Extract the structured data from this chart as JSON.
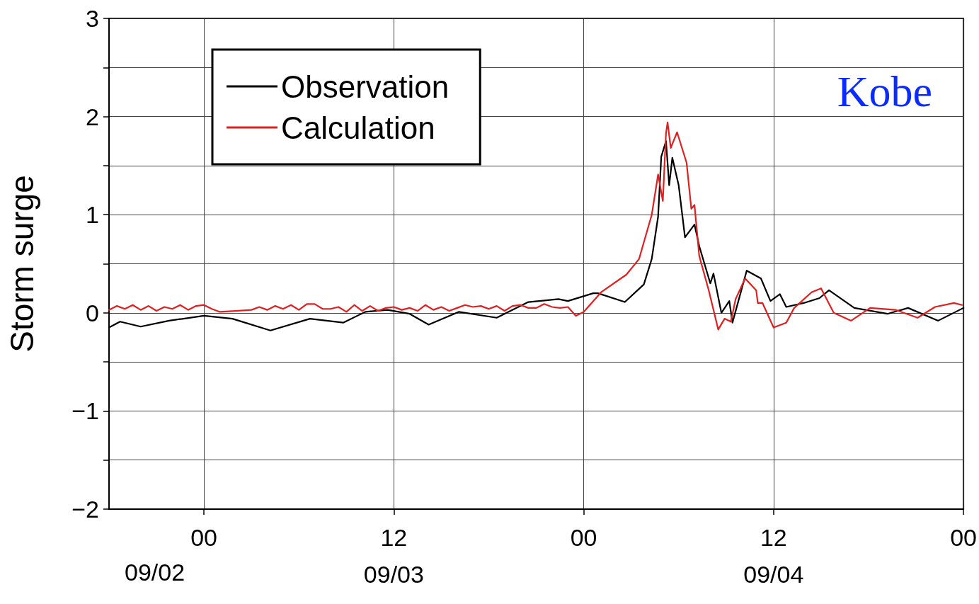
{
  "chart_data": {
    "type": "line",
    "ylabel": "Storm surge",
    "annotations": [
      "Kobe",
      "09/02"
    ],
    "xlim": [
      "--09-02T18:00",
      "--09-05T00:00"
    ],
    "xticks": [
      {
        "value": "--09-03T00:00",
        "label": "00"
      },
      {
        "value": "--09-03T12:00",
        "label": "12\n09/03"
      },
      {
        "value": "--09-04T00:00",
        "label": "00"
      },
      {
        "value": "--09-04T12:00",
        "label": "12\n09/04"
      },
      {
        "value": "--09-05T00:00",
        "label": "00"
      }
    ],
    "ylim": [
      -2,
      3
    ],
    "yticks": [
      -2,
      {
        "value": -1.5,
        "label": null
      },
      -1,
      {
        "value": -0.5,
        "label": null
      },
      0,
      {
        "value": 0.5,
        "label": null
      },
      1,
      {
        "value": 1.5,
        "label": null
      },
      2,
      {
        "value": 2.5,
        "label": null
      },
      3
    ],
    "grid": true,
    "legend": "top left",
    "marker": "none",
    "line_style": "solid",
    "series": [
      {
        "name": "Observation",
        "color": "#000000",
        "x": [
          "--09-02T18:00",
          "--09-02T18:42",
          "--09-02T20:00",
          "--09-02T21:48",
          "--09-03T00:00",
          "--09-03T01:48",
          "--09-03T04:12",
          "--09-03T06:42",
          "--09-03T08:48",
          "--09-03T10:12",
          "--09-03T11:36",
          "--09-03T13:00",
          "--09-03T14:12",
          "--09-03T16:06",
          "--09-03T18:30",
          "--09-03T20:30",
          "--09-03T22:24",
          "--09-03T23:00",
          "--09-04T00:36",
          "--09-04T00:54",
          "--09-04T02:36",
          "--09-04T03:48",
          "--09-04T04:18",
          "--09-04T04:42",
          "--09-04T04:54",
          "--09-04T05:12",
          "--09-04T05:24",
          "--09-04T05:36",
          "--09-04T06:00",
          "--09-04T06:24",
          "--09-04T07:00",
          "--09-04T07:18",
          "--09-04T08:00",
          "--09-04T08:12",
          "--09-04T08:42",
          "--09-04T09:12",
          "--09-04T09:24",
          "--09-04T10:18",
          "--09-04T11:12",
          "--09-04T11:48",
          "--09-04T12:24",
          "--09-04T12:48",
          "--09-04T13:54",
          "--09-04T14:54",
          "--09-04T15:30",
          "--09-04T17:06",
          "--09-04T19:12",
          "--09-04T20:30",
          "--09-04T22:24",
          "--09-05T00:00"
        ],
        "values": [
          -0.15,
          -0.09,
          -0.14,
          -0.08,
          -0.03,
          -0.06,
          -0.18,
          -0.06,
          -0.1,
          0.01,
          0.03,
          -0.01,
          -0.12,
          0.01,
          -0.05,
          0.11,
          0.14,
          0.12,
          0.2,
          0.2,
          0.11,
          0.29,
          0.55,
          0.98,
          1.59,
          1.75,
          1.3,
          1.58,
          1.3,
          0.77,
          0.9,
          0.68,
          0.3,
          0.4,
          0.0,
          0.12,
          -0.1,
          0.43,
          0.35,
          0.12,
          0.19,
          0.06,
          0.1,
          0.15,
          0.23,
          0.05,
          -0.01,
          0.05,
          -0.08,
          0.05
        ]
      },
      {
        "name": "Calculation",
        "color": "#e02020",
        "x": [
          "--09-02T18:00",
          "--09-02T18:30",
          "--09-02T19:00",
          "--09-02T19:30",
          "--09-02T20:00",
          "--09-02T20:30",
          "--09-02T21:00",
          "--09-02T21:30",
          "--09-02T22:00",
          "--09-02T22:30",
          "--09-02T23:00",
          "--09-02T23:30",
          "--09-03T00:00",
          "--09-03T00:30",
          "--09-03T01:00",
          "--09-03T02:00",
          "--09-03T03:00",
          "--09-03T03:30",
          "--09-03T04:00",
          "--09-03T04:30",
          "--09-03T05:00",
          "--09-03T05:30",
          "--09-03T06:00",
          "--09-03T06:30",
          "--09-03T07:00",
          "--09-03T07:30",
          "--09-03T08:00",
          "--09-03T08:30",
          "--09-03T09:00",
          "--09-03T09:30",
          "--09-03T10:00",
          "--09-03T10:30",
          "--09-03T11:00",
          "--09-03T11:30",
          "--09-03T12:00",
          "--09-03T12:30",
          "--09-03T13:00",
          "--09-03T13:30",
          "--09-03T14:00",
          "--09-03T14:30",
          "--09-03T15:00",
          "--09-03T15:30",
          "--09-03T16:00",
          "--09-03T16:30",
          "--09-03T17:00",
          "--09-03T17:30",
          "--09-03T18:00",
          "--09-03T18:30",
          "--09-03T19:00",
          "--09-03T19:30",
          "--09-03T20:00",
          "--09-03T20:30",
          "--09-03T21:00",
          "--09-03T21:30",
          "--09-03T22:00",
          "--09-03T22:30",
          "--09-03T23:00",
          "--09-03T23:30",
          "--09-04T00:00",
          "--09-04T01:06",
          "--09-04T02:42",
          "--09-04T03:30",
          "--09-04T04:18",
          "--09-04T04:42",
          "--09-04T05:00",
          "--09-04T05:12",
          "--09-04T05:18",
          "--09-04T05:30",
          "--09-04T05:54",
          "--09-04T06:30",
          "--09-04T06:48",
          "--09-04T07:00",
          "--09-04T07:18",
          "--09-04T07:54",
          "--09-04T08:30",
          "--09-04T08:54",
          "--09-04T09:18",
          "--09-04T09:36",
          "--09-04T10:12",
          "--09-04T10:54",
          "--09-04T11:00",
          "--09-04T11:18",
          "--09-04T12:00",
          "--09-04T12:48",
          "--09-04T13:18",
          "--09-04T14:24",
          "--09-04T15:00",
          "--09-04T15:48",
          "--09-04T16:54",
          "--09-04T18:06",
          "--09-04T19:42",
          "--09-04T21:06",
          "--09-04T22:12",
          "--09-04T23:24",
          "--09-04T23:54"
        ],
        "values": [
          0.03,
          0.07,
          0.04,
          0.08,
          0.03,
          0.07,
          0.02,
          0.06,
          0.04,
          0.08,
          0.03,
          0.07,
          0.08,
          0.04,
          0.01,
          0.02,
          0.03,
          0.06,
          0.03,
          0.07,
          0.04,
          0.08,
          0.03,
          0.09,
          0.09,
          0.04,
          0.04,
          0.06,
          0.01,
          0.08,
          0.02,
          0.07,
          0.02,
          0.05,
          0.06,
          0.03,
          0.05,
          0.02,
          0.08,
          0.03,
          0.06,
          0.02,
          0.05,
          0.08,
          0.06,
          0.07,
          0.04,
          0.07,
          0.02,
          0.07,
          0.08,
          0.05,
          0.05,
          0.09,
          0.06,
          0.05,
          0.06,
          -0.03,
          0.01,
          0.21,
          0.39,
          0.55,
          1.0,
          1.41,
          1.14,
          1.83,
          1.94,
          1.68,
          1.84,
          1.53,
          1.06,
          1.1,
          0.58,
          0.23,
          -0.17,
          -0.06,
          -0.09,
          0.14,
          0.35,
          0.23,
          0.1,
          0.1,
          -0.15,
          -0.1,
          0.05,
          0.21,
          0.25,
          0.0,
          -0.08,
          0.05,
          0.03,
          -0.05,
          0.06,
          0.1,
          0.08
        ]
      }
    ]
  }
}
